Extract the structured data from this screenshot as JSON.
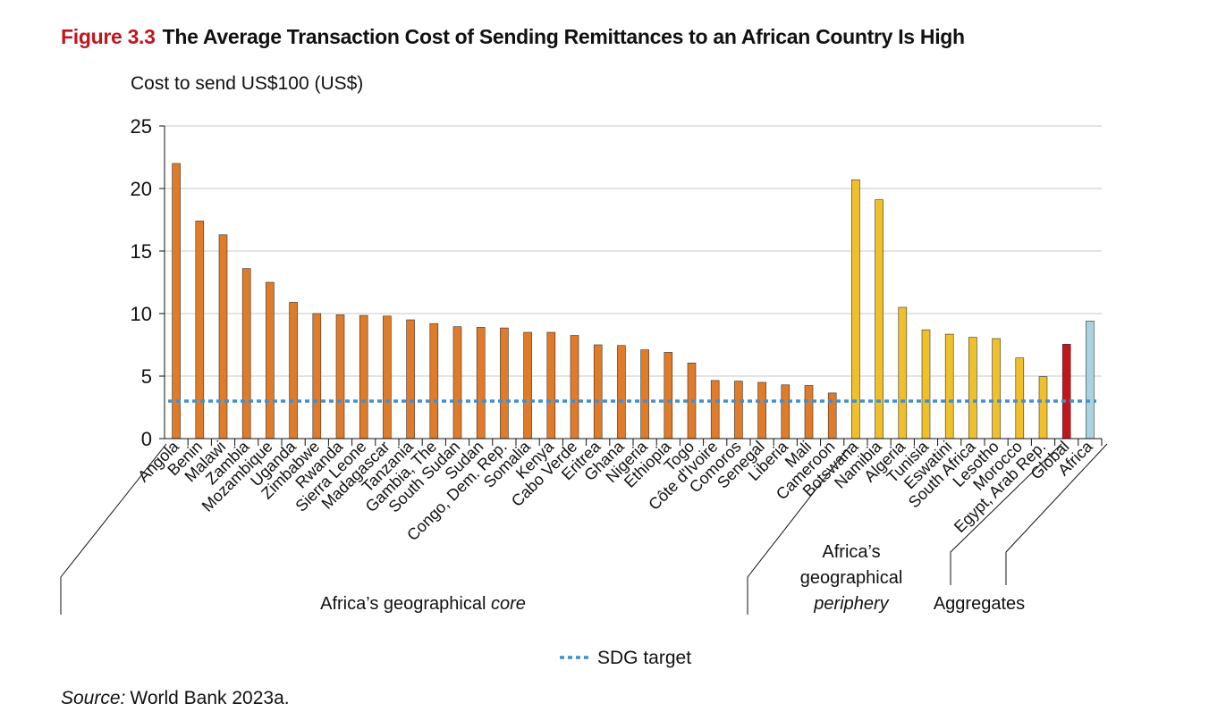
{
  "figure": {
    "number": "Figure 3.3",
    "title": "The Average Transaction Cost of Sending Remittances to an African Country Is High"
  },
  "source": {
    "label": "Source:",
    "text": "World Bank 2023a."
  },
  "colors": {
    "core": "#e07b2a",
    "periphery": "#f0c02a",
    "global": "#c0161c",
    "africa": "#a9d3e0",
    "sdg": "#3f8fd2",
    "grid": "#c8c8c8"
  },
  "chart_data": {
    "type": "bar",
    "title": "The Average Transaction Cost of Sending Remittances to an African Country Is High",
    "ylabel": "Cost to send US$100 (US$)",
    "xlabel": "",
    "ylim": [
      0,
      25
    ],
    "yticks": [
      0,
      5,
      10,
      15,
      20,
      25
    ],
    "grid": true,
    "categories": [
      "Angola",
      "Benin",
      "Malawi",
      "Zambia",
      "Mozambique",
      "Uganda",
      "Zimbabwe",
      "Rwanda",
      "Sierra Leone",
      "Madagascar",
      "Tanzania",
      "Gambia, The",
      "South Sudan",
      "Sudan",
      "Congo, Dem. Rep.",
      "Somalia",
      "Kenya",
      "Cabo Verde",
      "Eritrea",
      "Ghana",
      "Nigeria",
      "Ethiopia",
      "Togo",
      "Côte d'Ivoire",
      "Comoros",
      "Senegal",
      "Liberia",
      "Mali",
      "Cameroon",
      "Botswana",
      "Namibia",
      "Algeria",
      "Tunisia",
      "Eswatini",
      "South Africa",
      "Lesotho",
      "Morocco",
      "Egypt, Arab Rep.",
      "Global",
      "Africa"
    ],
    "values": [
      22.0,
      17.4,
      16.3,
      13.6,
      12.5,
      10.9,
      10.0,
      9.9,
      9.85,
      9.8,
      9.5,
      9.2,
      8.95,
      8.9,
      8.85,
      8.5,
      8.5,
      8.25,
      7.5,
      7.45,
      7.1,
      6.9,
      6.05,
      4.65,
      4.6,
      4.5,
      4.3,
      4.25,
      3.65,
      20.7,
      19.1,
      10.5,
      8.7,
      8.35,
      8.1,
      8.0,
      6.45,
      4.95,
      7.55,
      9.4
    ],
    "groups": [
      "core",
      "core",
      "core",
      "core",
      "core",
      "core",
      "core",
      "core",
      "core",
      "core",
      "core",
      "core",
      "core",
      "core",
      "core",
      "core",
      "core",
      "core",
      "core",
      "core",
      "core",
      "core",
      "core",
      "core",
      "core",
      "core",
      "core",
      "core",
      "core",
      "periphery",
      "periphery",
      "periphery",
      "periphery",
      "periphery",
      "periphery",
      "periphery",
      "periphery",
      "periphery",
      "global",
      "africa"
    ],
    "group_labels": {
      "core_prefix": "Africa’s geographical",
      "core_italic": "core",
      "periphery_line1": "Africa’s",
      "periphery_line2": "geographical",
      "periphery_italic": "periphery",
      "aggregates": "Aggregates"
    },
    "reference_line": {
      "name": "SDG target",
      "value": 3
    },
    "legend": {
      "position": "bottom-center",
      "entries": [
        "SDG target"
      ]
    }
  }
}
